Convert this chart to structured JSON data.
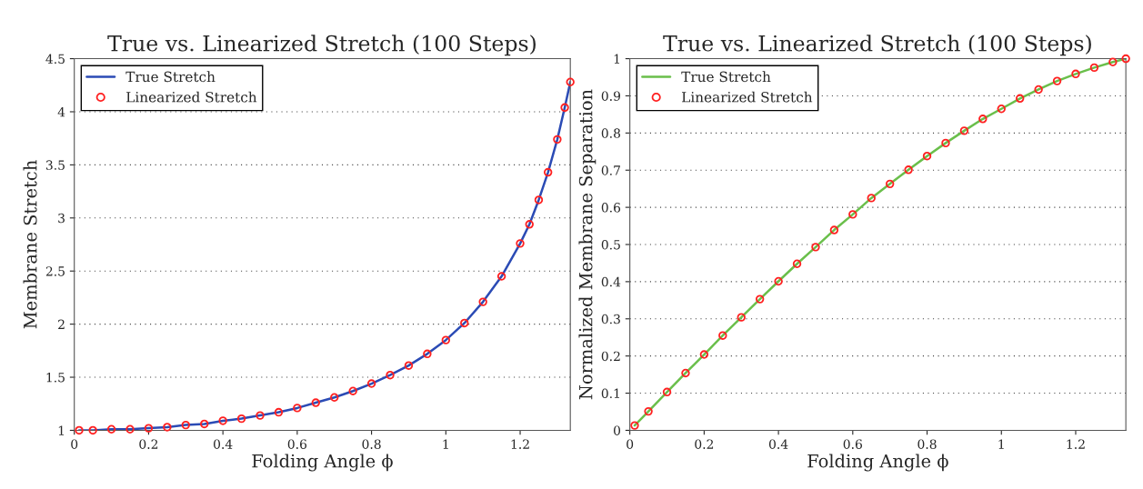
{
  "chart_data": [
    {
      "type": "line",
      "title": "True vs. Linearized Stretch (100 Steps)",
      "xlabel": "Folding Angle ϕ",
      "ylabel": "Membrane Stretch",
      "x": [
        0.013,
        0.05,
        0.1,
        0.15,
        0.2,
        0.25,
        0.3,
        0.35,
        0.4,
        0.45,
        0.5,
        0.55,
        0.6,
        0.65,
        0.7,
        0.75,
        0.8,
        0.85,
        0.9,
        0.95,
        1.0,
        1.05,
        1.1,
        1.15,
        1.2,
        1.225,
        1.25,
        1.275,
        1.3,
        1.32,
        1.335
      ],
      "series": [
        {
          "name": "True Stretch",
          "color": "#2b4bb5",
          "values": [
            1.0,
            1.0,
            1.01,
            1.01,
            1.02,
            1.03,
            1.05,
            1.06,
            1.09,
            1.11,
            1.14,
            1.17,
            1.21,
            1.26,
            1.31,
            1.37,
            1.44,
            1.52,
            1.61,
            1.72,
            1.85,
            2.01,
            2.21,
            2.45,
            2.76,
            2.94,
            3.17,
            3.43,
            3.74,
            4.04,
            4.28
          ]
        },
        {
          "name": "Linearized Stretch",
          "type": "scatter",
          "marker": "circle",
          "color": "#ff2020",
          "values": [
            1.0,
            1.0,
            1.01,
            1.01,
            1.02,
            1.03,
            1.05,
            1.06,
            1.09,
            1.11,
            1.14,
            1.17,
            1.21,
            1.26,
            1.31,
            1.37,
            1.44,
            1.52,
            1.61,
            1.72,
            1.85,
            2.01,
            2.21,
            2.45,
            2.76,
            2.94,
            3.17,
            3.43,
            3.74,
            4.04,
            4.28
          ]
        }
      ],
      "xlim": [
        0,
        1.335
      ],
      "xticks": [
        0,
        0.2,
        0.4,
        0.6,
        0.8,
        1,
        1.2
      ],
      "ylim": [
        1,
        4.5
      ],
      "yticks": [
        1,
        1.5,
        2,
        2.5,
        3,
        3.5,
        4,
        4.5
      ],
      "grid": "y",
      "legend": "top left"
    },
    {
      "type": "line",
      "title": "True vs. Linearized Stretch (100 Steps)",
      "xlabel": "Folding Angle ϕ",
      "ylabel": "Normalized Membrane Separation",
      "x": [
        0.013,
        0.05,
        0.1,
        0.15,
        0.2,
        0.25,
        0.3,
        0.35,
        0.4,
        0.45,
        0.5,
        0.55,
        0.6,
        0.65,
        0.7,
        0.75,
        0.8,
        0.85,
        0.9,
        0.95,
        1.0,
        1.05,
        1.1,
        1.15,
        1.2,
        1.25,
        1.3,
        1.335
      ],
      "series": [
        {
          "name": "True Stretch",
          "color": "#6abf4b",
          "values": [
            0.013,
            0.051,
            0.103,
            0.154,
            0.204,
            0.255,
            0.304,
            0.353,
            0.401,
            0.448,
            0.493,
            0.539,
            0.581,
            0.625,
            0.663,
            0.701,
            0.738,
            0.773,
            0.806,
            0.838,
            0.865,
            0.893,
            0.917,
            0.94,
            0.959,
            0.976,
            0.991,
            1.0
          ]
        },
        {
          "name": "Linearized Stretch",
          "type": "scatter",
          "marker": "circle",
          "color": "#ff2020",
          "values": [
            0.013,
            0.051,
            0.103,
            0.154,
            0.204,
            0.255,
            0.304,
            0.353,
            0.401,
            0.448,
            0.493,
            0.539,
            0.581,
            0.625,
            0.663,
            0.701,
            0.738,
            0.773,
            0.806,
            0.838,
            0.865,
            0.893,
            0.917,
            0.94,
            0.959,
            0.976,
            0.991,
            1.0
          ]
        }
      ],
      "xlim": [
        0,
        1.335
      ],
      "xticks": [
        0,
        0.2,
        0.4,
        0.6,
        0.8,
        1,
        1.2
      ],
      "ylim": [
        0,
        1
      ],
      "yticks": [
        0,
        0.1,
        0.2,
        0.3,
        0.4,
        0.5,
        0.6,
        0.7,
        0.8,
        0.9,
        1
      ],
      "grid": "y",
      "legend": "top left"
    }
  ]
}
